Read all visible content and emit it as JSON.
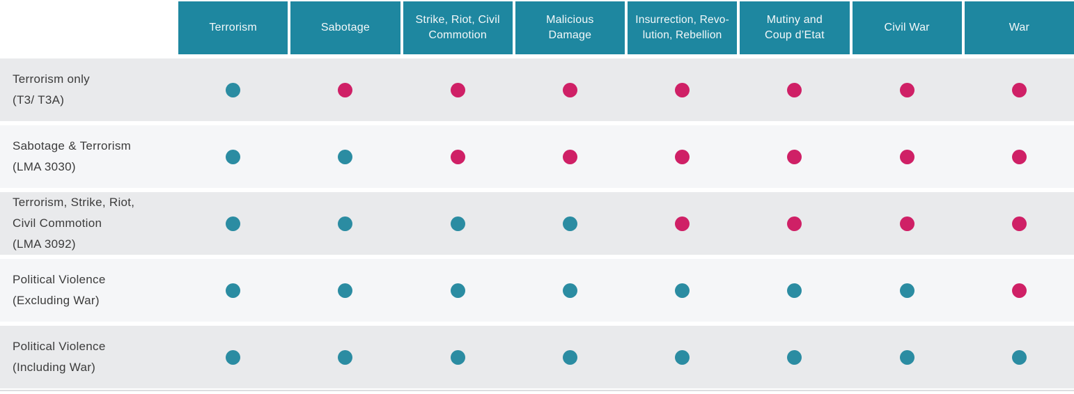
{
  "colors": {
    "header_background": "#1E87A0",
    "dot_covered_teal": "#2B8CA2",
    "dot_not_covered_pink": "#CF2066",
    "row_odd_background": "#E9EAEC",
    "row_even_background": "#F5F6F8",
    "header_text": "#F4F8F9",
    "label_text": "#3B3B3B"
  },
  "table": {
    "columns": [
      {
        "label": "Terrorism"
      },
      {
        "label": "Sabotage"
      },
      {
        "label": "Strike, Riot, Civil\nCommotion"
      },
      {
        "label": "Malicious\nDamage"
      },
      {
        "label": "Insurrection, Revo-\nlution, Rebellion"
      },
      {
        "label": "Mutiny and\nCoup d’Etat"
      },
      {
        "label": "Civil War"
      },
      {
        "label": "War"
      }
    ],
    "rows": [
      {
        "label": "Terrorism only\n(T3/ T3A)",
        "cells": [
          "covered",
          "not-covered",
          "not-covered",
          "not-covered",
          "not-covered",
          "not-covered",
          "not-covered",
          "not-covered"
        ]
      },
      {
        "label": "Sabotage & Terrorism\n(LMA 3030)",
        "cells": [
          "covered",
          "covered",
          "not-covered",
          "not-covered",
          "not-covered",
          "not-covered",
          "not-covered",
          "not-covered"
        ]
      },
      {
        "label": "Terrorism, Strike, Riot,\nCivil Commotion\n(LMA 3092)",
        "cells": [
          "covered",
          "covered",
          "covered",
          "covered",
          "not-covered",
          "not-covered",
          "not-covered",
          "not-covered"
        ]
      },
      {
        "label": "Political Violence\n(Excluding War)",
        "cells": [
          "covered",
          "covered",
          "covered",
          "covered",
          "covered",
          "covered",
          "covered",
          "not-covered"
        ]
      },
      {
        "label": "Political Violence\n(Including War)",
        "cells": [
          "covered",
          "covered",
          "covered",
          "covered",
          "covered",
          "covered",
          "covered",
          "covered"
        ]
      }
    ]
  },
  "chart_data": {
    "type": "table",
    "title": "Political violence coverage comparison matrix",
    "categories": [
      "Terrorism",
      "Sabotage",
      "Strike, Riot, Civil Commotion",
      "Malicious Damage",
      "Insurrection, Revolution, Rebellion",
      "Mutiny and Coup d’Etat",
      "Civil War",
      "War"
    ],
    "series": [
      {
        "name": "Terrorism only (T3/ T3A)",
        "values": [
          true,
          false,
          false,
          false,
          false,
          false,
          false,
          false
        ]
      },
      {
        "name": "Sabotage & Terrorism (LMA 3030)",
        "values": [
          true,
          true,
          false,
          false,
          false,
          false,
          false,
          false
        ]
      },
      {
        "name": "Terrorism, Strike, Riot, Civil Commotion (LMA 3092)",
        "values": [
          true,
          true,
          true,
          true,
          false,
          false,
          false,
          false
        ]
      },
      {
        "name": "Political Violence (Excluding War)",
        "values": [
          true,
          true,
          true,
          true,
          true,
          true,
          true,
          false
        ]
      },
      {
        "name": "Political Violence (Including War)",
        "values": [
          true,
          true,
          true,
          true,
          true,
          true,
          true,
          true
        ]
      }
    ],
    "legend": {
      "teal_dot": "covered",
      "pink_dot": "not covered"
    },
    "layout": {
      "grid": false,
      "row_striping": true
    }
  }
}
